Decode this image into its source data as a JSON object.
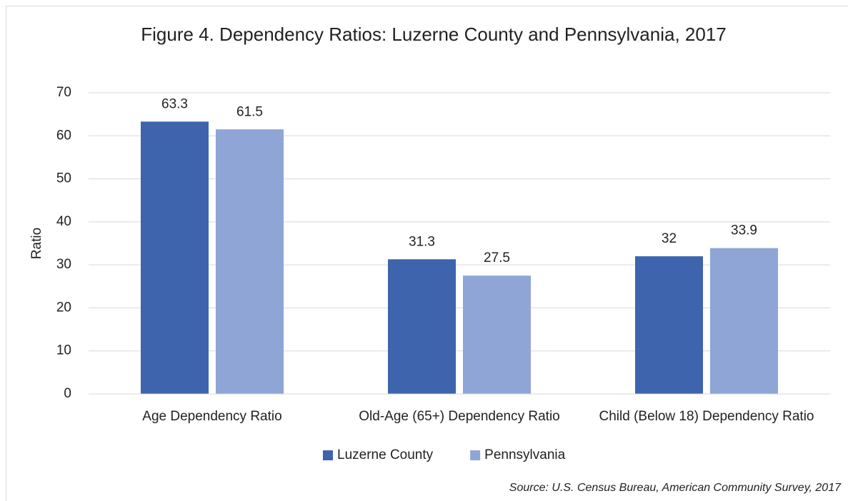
{
  "chart_data": {
    "type": "bar",
    "title": "Figure 4. Dependency Ratios: Luzerne County and Pennsylvania, 2017",
    "ylabel": "Ratio",
    "categories": [
      "Age Dependency Ratio",
      "Old-Age (65+) Dependency Ratio",
      "Child (Below 18) Dependency Ratio"
    ],
    "series": [
      {
        "name": "Luzerne County",
        "color": "#3d64ad",
        "values": [
          63.3,
          31.3,
          32
        ]
      },
      {
        "name": "Pennsylvania",
        "color": "#8fa5d6",
        "values": [
          61.5,
          27.5,
          33.9
        ]
      }
    ],
    "ylim": [
      0,
      70
    ],
    "yticks": [
      0,
      10,
      20,
      30,
      40,
      50,
      60,
      70
    ],
    "grid": true,
    "legend": "bottom",
    "source": "Source: U.S. Census Bureau, American Community Survey, 2017"
  }
}
